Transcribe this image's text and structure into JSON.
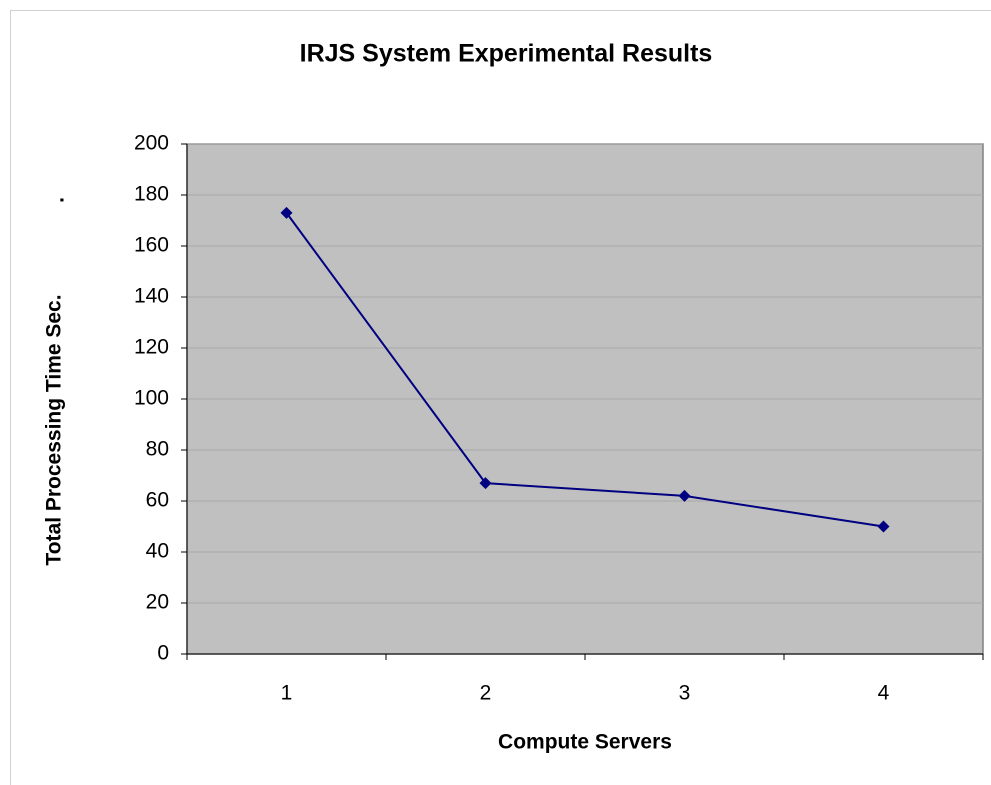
{
  "chart_data": {
    "type": "line",
    "title": "IRJS System Experimental Results",
    "x_label": "Compute Servers",
    "y_label": "Total Processing Time Sec.",
    "annotations": [
      "."
    ],
    "categories": [
      "1",
      "2",
      "3",
      "4"
    ],
    "series": [
      {
        "name": "Total Processing Time",
        "color": "#000080",
        "values": [
          173,
          67,
          62,
          50
        ]
      }
    ],
    "ylim": [
      0,
      200
    ],
    "yticks": [
      0,
      20,
      40,
      60,
      80,
      100,
      120,
      140,
      160,
      180,
      200
    ],
    "grid": true,
    "plot_background": "#c0c0c0"
  }
}
